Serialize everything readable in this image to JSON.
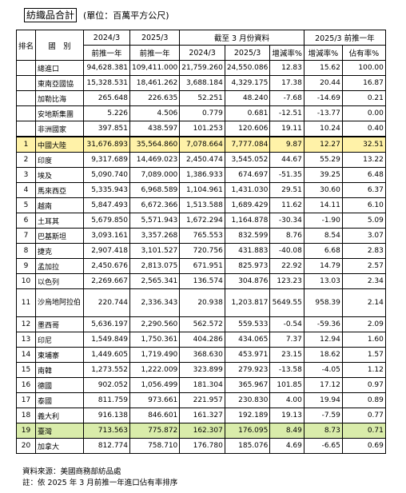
{
  "title": "紡織品合計",
  "unit": "(單位：百萬平方公尺)",
  "header": {
    "rank": "排名",
    "country": "國　別",
    "y2024": "2024/3",
    "y2025": "2025/3",
    "ytd": "截至 3 月份資料",
    "y2025b": "2025/3 前推一年",
    "prev_year": "前推一年",
    "ytd2024": "2024/3",
    "ytd2025": "2025/3",
    "growth": "增減率%",
    "growth2": "增減率%",
    "share": "佔有率%"
  },
  "summary_rows": [
    {
      "name": "總進口",
      "a": "94,628.381",
      "b": "109,411.000",
      "c": "21,759.260",
      "d": "24,550.086",
      "e": "12.83",
      "f": "15.62",
      "g": "100.00"
    },
    {
      "name": "東南亞國協",
      "a": "15,328.531",
      "b": "18,461.262",
      "c": "3,688.184",
      "d": "4,329.175",
      "e": "17.38",
      "f": "20.44",
      "g": "16.87"
    },
    {
      "name": "加勒比海",
      "a": "265.648",
      "b": "226.635",
      "c": "52.251",
      "d": "48.240",
      "e": "-7.68",
      "f": "-14.69",
      "g": "0.21"
    },
    {
      "name": "安地斯集團",
      "a": "5.226",
      "b": "4.506",
      "c": "0.779",
      "d": "0.681",
      "e": "-12.51",
      "f": "-13.77",
      "g": "0.00"
    },
    {
      "name": "非洲國家",
      "a": "397.851",
      "b": "438.597",
      "c": "101.253",
      "d": "120.606",
      "e": "19.11",
      "f": "10.24",
      "g": "0.40"
    }
  ],
  "rows": [
    {
      "rank": "1",
      "name": "中國大陸",
      "a": "31,676.893",
      "b": "35,564.860",
      "c": "7,078.664",
      "d": "7,777.084",
      "e": "9.87",
      "f": "12.27",
      "g": "32.51"
    },
    {
      "rank": "2",
      "name": "印度",
      "a": "9,317.689",
      "b": "14,469.023",
      "c": "2,450.474",
      "d": "3,545.052",
      "e": "44.67",
      "f": "55.29",
      "g": "13.22"
    },
    {
      "rank": "3",
      "name": "埃及",
      "a": "5,090.740",
      "b": "7,089.000",
      "c": "1,386.933",
      "d": "674.697",
      "e": "-51.35",
      "f": "39.25",
      "g": "6.48"
    },
    {
      "rank": "4",
      "name": "馬來西亞",
      "a": "5,335.943",
      "b": "6,968.589",
      "c": "1,104.961",
      "d": "1,431.030",
      "e": "29.51",
      "f": "30.60",
      "g": "6.37"
    },
    {
      "rank": "5",
      "name": "越南",
      "a": "5,847.493",
      "b": "6,672.366",
      "c": "1,513.588",
      "d": "1,689.429",
      "e": "11.62",
      "f": "14.11",
      "g": "6.10"
    },
    {
      "rank": "6",
      "name": "土耳其",
      "a": "5,679.850",
      "b": "5,571.943",
      "c": "1,672.294",
      "d": "1,164.878",
      "e": "-30.34",
      "f": "-1.90",
      "g": "5.09"
    },
    {
      "rank": "7",
      "name": "巴基斯坦",
      "a": "3,093.161",
      "b": "3,357.268",
      "c": "765.553",
      "d": "832.599",
      "e": "8.76",
      "f": "8.54",
      "g": "3.07"
    },
    {
      "rank": "8",
      "name": "捷克",
      "a": "2,907.418",
      "b": "3,101.527",
      "c": "720.756",
      "d": "431.883",
      "e": "-40.08",
      "f": "6.68",
      "g": "2.83"
    },
    {
      "rank": "9",
      "name": "孟加拉",
      "a": "2,450.676",
      "b": "2,813.075",
      "c": "671.951",
      "d": "825.973",
      "e": "22.92",
      "f": "14.79",
      "g": "2.57"
    },
    {
      "rank": "10",
      "name": "以色列",
      "a": "2,269.667",
      "b": "2,565.341",
      "c": "136.574",
      "d": "304.876",
      "e": "123.23",
      "f": "13.03",
      "g": "2.34"
    },
    {
      "rank": "11",
      "name": "沙烏地阿拉伯",
      "a": "220.744",
      "b": "2,336.343",
      "c": "20.938",
      "d": "1,203.817",
      "e": "5649.55",
      "f": "958.39",
      "g": "2.14"
    },
    {
      "rank": "12",
      "name": "墨西哥",
      "a": "5,636.197",
      "b": "2,290.560",
      "c": "562.572",
      "d": "559.533",
      "e": "-0.54",
      "f": "-59.36",
      "g": "2.09"
    },
    {
      "rank": "13",
      "name": "印尼",
      "a": "1,549.849",
      "b": "1,750.361",
      "c": "404.286",
      "d": "434.065",
      "e": "7.37",
      "f": "12.94",
      "g": "1.60"
    },
    {
      "rank": "14",
      "name": "柬埔寨",
      "a": "1,449.605",
      "b": "1,719.490",
      "c": "368.630",
      "d": "453.971",
      "e": "23.15",
      "f": "18.62",
      "g": "1.57"
    },
    {
      "rank": "15",
      "name": "南韓",
      "a": "1,273.552",
      "b": "1,222.009",
      "c": "323.899",
      "d": "279.923",
      "e": "-13.58",
      "f": "-4.05",
      "g": "1.12"
    },
    {
      "rank": "16",
      "name": "德國",
      "a": "902.052",
      "b": "1,056.499",
      "c": "181.304",
      "d": "365.967",
      "e": "101.85",
      "f": "17.12",
      "g": "0.97"
    },
    {
      "rank": "17",
      "name": "泰國",
      "a": "811.759",
      "b": "973.661",
      "c": "221.957",
      "d": "230.830",
      "e": "4.00",
      "f": "19.94",
      "g": "0.89"
    },
    {
      "rank": "18",
      "name": "義大利",
      "a": "916.138",
      "b": "846.601",
      "c": "161.327",
      "d": "192.189",
      "e": "19.13",
      "f": "-7.59",
      "g": "0.77"
    },
    {
      "rank": "19",
      "name": "臺灣",
      "a": "713.563",
      "b": "775.872",
      "c": "162.307",
      "d": "176.095",
      "e": "8.49",
      "f": "8.73",
      "g": "0.71"
    },
    {
      "rank": "20",
      "name": "加拿大",
      "a": "812.774",
      "b": "758.710",
      "c": "176.780",
      "d": "185.076",
      "e": "4.69",
      "f": "-6.65",
      "g": "0.69"
    }
  ],
  "highlight": {
    "yellow_rank": "1",
    "green_rank": "19",
    "yellow": "#fff2a8",
    "green": "#d9ecaa"
  },
  "notes": {
    "source": "資料來源：美國商務部紡品處",
    "note": "註：依 2025 年 3 月前推一年進口佔有率排序"
  }
}
